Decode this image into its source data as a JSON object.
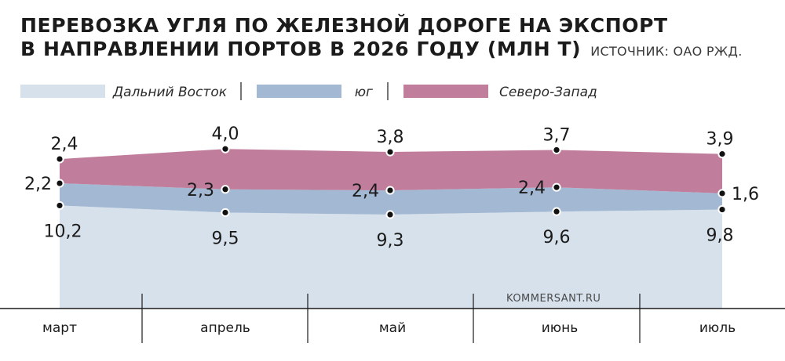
{
  "header": {
    "title_line1": "ПЕРЕВОЗКА УГЛЯ ПО ЖЕЛЕЗНОЙ ДОРОГЕ НА ЭКСПОРТ",
    "title_line2": "В НАПРАВЛЕНИИ ПОРТОВ В 2026 ГОДУ (МЛН Т)",
    "source": "ИСТОЧНИК: ОАО РЖД."
  },
  "credit": "KOMMERSANT.RU",
  "colors": {
    "far_east": "#d6e1ec",
    "south": "#a3b8d2",
    "northwest": "#c07d9c",
    "dot": "#111111",
    "axis": "#1b1b1b"
  },
  "chart_data": {
    "type": "area",
    "stacked": true,
    "categories": [
      "март",
      "апрель",
      "май",
      "июнь",
      "июль"
    ],
    "series": [
      {
        "name": "Дальний Восток",
        "values": [
          10.2,
          9.5,
          9.3,
          9.6,
          9.8
        ],
        "labels": [
          "10,2",
          "9,5",
          "9,3",
          "9,6",
          "9,8"
        ]
      },
      {
        "name": "юг",
        "values": [
          2.2,
          2.3,
          2.4,
          2.4,
          1.6
        ],
        "labels": [
          "2,2",
          "2,3",
          "2,4",
          "2,4",
          "1,6"
        ]
      },
      {
        "name": "Северо-Запад",
        "values": [
          2.4,
          4.0,
          3.8,
          3.7,
          3.9
        ],
        "labels": [
          "2,4",
          "4,0",
          "3,8",
          "3,7",
          "3,9"
        ]
      }
    ],
    "ylim": [
      0,
      16
    ],
    "legend_position": "top",
    "grid": false
  }
}
